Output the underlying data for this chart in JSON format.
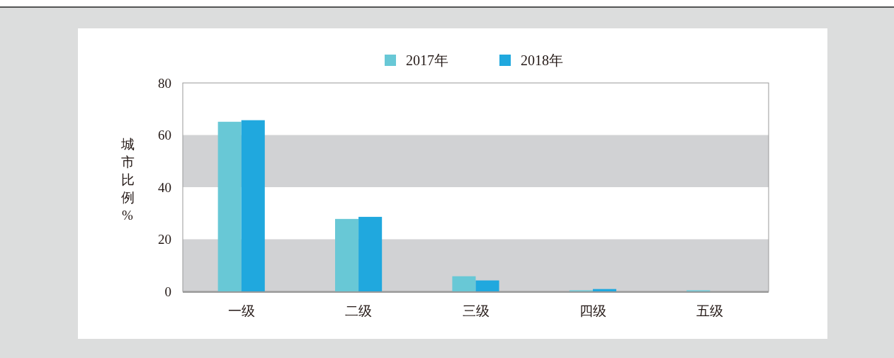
{
  "chart_data": {
    "type": "bar",
    "ylabel": "城市比例%",
    "categories": [
      "一级",
      "二级",
      "三级",
      "四级",
      "五级"
    ],
    "series": [
      {
        "name": "2017年",
        "color": "#68c8d6",
        "values": [
          65.1,
          27.8,
          5.8,
          0.4,
          0.4
        ]
      },
      {
        "name": "2018年",
        "color": "#20a8de",
        "values": [
          65.7,
          28.6,
          4.2,
          0.9,
          0
        ]
      }
    ],
    "ylim": [
      0,
      80
    ],
    "yticks": [
      0,
      20,
      40,
      60,
      80
    ],
    "grid": false,
    "legend": "top",
    "bands": [
      {
        "axis": "y",
        "from": 0,
        "to": 20,
        "color": "#d1d2d4"
      },
      {
        "axis": "y",
        "from": 40,
        "to": 60,
        "color": "#d1d2d4"
      }
    ]
  }
}
